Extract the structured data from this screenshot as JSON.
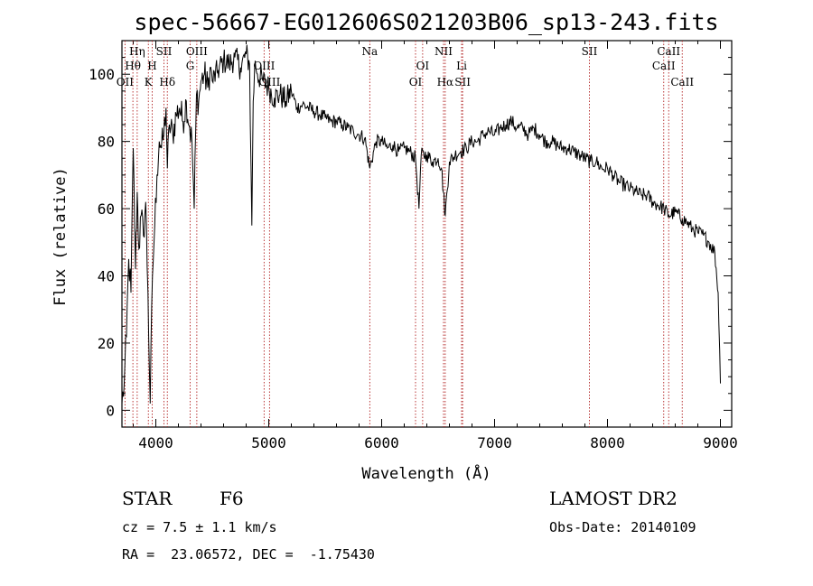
{
  "chart_data": {
    "type": "line",
    "title": "spec-56667-EG012606S021203B06_sp13-243.fits",
    "xlabel": "Wavelength (Å)",
    "ylabel": "Flux (relative)",
    "xlim": [
      3700,
      9100
    ],
    "ylim": [
      -5,
      110
    ],
    "xticks": [
      4000,
      5000,
      6000,
      7000,
      8000,
      9000
    ],
    "yticks": [
      0,
      20,
      40,
      60,
      80,
      100
    ],
    "grid": false,
    "series": [
      {
        "x": [
          3700,
          3720,
          3740,
          3760,
          3780,
          3800,
          3820,
          3835,
          3850,
          3870,
          3890,
          3910,
          3930,
          3950,
          3970,
          3990,
          4010,
          4030,
          4050,
          4070,
          4090,
          4102,
          4120,
          4150,
          4180,
          4210,
          4240,
          4270,
          4300,
          4320,
          4340,
          4360,
          4380,
          4400,
          4430,
          4460,
          4480,
          4500,
          4550,
          4600,
          4650,
          4700,
          4750,
          4800,
          4830,
          4850,
          4862,
          4880,
          4900,
          4950,
          5000,
          5050,
          5100,
          5150,
          5200,
          5250,
          5300,
          5350,
          5400,
          5450,
          5500,
          5550,
          5600,
          5650,
          5700,
          5750,
          5800,
          5850,
          5895,
          5950,
          6000,
          6050,
          6100,
          6150,
          6200,
          6250,
          6300,
          6330,
          6350,
          6400,
          6450,
          6500,
          6530,
          6563,
          6600,
          6650,
          6700,
          6750,
          6800,
          6850,
          6900,
          6950,
          7000,
          7050,
          7100,
          7150,
          7200,
          7250,
          7300,
          7350,
          7400,
          7450,
          7500,
          7550,
          7600,
          7650,
          7700,
          7750,
          7800,
          7850,
          7900,
          7950,
          8000,
          8050,
          8100,
          8150,
          8200,
          8250,
          8300,
          8350,
          8400,
          8450,
          8500,
          8542,
          8600,
          8662,
          8700,
          8750,
          8800,
          8850,
          8900,
          8950,
          8980,
          9000
        ],
        "values": [
          2,
          8,
          22,
          45,
          35,
          78,
          42,
          65,
          48,
          58,
          52,
          62,
          35,
          2,
          40,
          55,
          70,
          80,
          78,
          82,
          90,
          72,
          85,
          82,
          88,
          90,
          86,
          92,
          84,
          80,
          60,
          94,
          92,
          98,
          100,
          96,
          102,
          98,
          101,
          104,
          103,
          105,
          102,
          106,
          103,
          55,
          92,
          104,
          100,
          98,
          96,
          93,
          94,
          92,
          95,
          90,
          91,
          90,
          89,
          88,
          87,
          86,
          86,
          85,
          84,
          83,
          82,
          81,
          72,
          80,
          80,
          78,
          79,
          77,
          78,
          77,
          75,
          60,
          76,
          76,
          74,
          75,
          72,
          58,
          74,
          76,
          77,
          78,
          80,
          80,
          82,
          83,
          82,
          84,
          85,
          86,
          84,
          84,
          82,
          84,
          82,
          80,
          80,
          79,
          78,
          78,
          77,
          76,
          75,
          74,
          74,
          72,
          72,
          70,
          68,
          67,
          66,
          65,
          64,
          64,
          62,
          61,
          60,
          58,
          59,
          57,
          56,
          54,
          53,
          52,
          50,
          47,
          35,
          8
        ],
        "color": "#000000"
      }
    ],
    "lines": [
      {
        "label": "OII",
        "x": 3727,
        "tier": 3
      },
      {
        "label": "Hθ",
        "x": 3797,
        "tier": 2
      },
      {
        "label": "Hη",
        "x": 3835,
        "tier": 1
      },
      {
        "label": "K",
        "x": 3934,
        "tier": 3
      },
      {
        "label": "H",
        "x": 3968,
        "tier": 2
      },
      {
        "label": "SII",
        "x": 4072,
        "tier": 1
      },
      {
        "label": "Hδ",
        "x": 4102,
        "tier": 3
      },
      {
        "label": "G",
        "x": 4304,
        "tier": 2
      },
      {
        "label": "OIII",
        "x": 4363,
        "tier": 1
      },
      {
        "label": "OIII",
        "x": 4959,
        "tier": 2
      },
      {
        "label": "OIII",
        "x": 5007,
        "tier": 3
      },
      {
        "label": "Na",
        "x": 5895,
        "tier": 1
      },
      {
        "label": "OI",
        "x": 6300,
        "tier": 3
      },
      {
        "label": "OI",
        "x": 6363,
        "tier": 2
      },
      {
        "label": "NII",
        "x": 6548,
        "tier": 1
      },
      {
        "label": "Hα",
        "x": 6563,
        "tier": 3
      },
      {
        "label": "Li",
        "x": 6708,
        "tier": 2
      },
      {
        "label": "SII",
        "x": 6717,
        "tier": 3
      },
      {
        "label": "SII",
        "x": 7840,
        "tier": 1
      },
      {
        "label": "CaII",
        "x": 8498,
        "tier": 2
      },
      {
        "label": "CaII",
        "x": 8542,
        "tier": 1
      },
      {
        "label": "CaII",
        "x": 8662,
        "tier": 3
      }
    ]
  },
  "info": {
    "class": "STAR",
    "subclass": "F6",
    "survey": "LAMOST DR2",
    "cz": "cz = 7.5 ± 1.1 km/s",
    "obs_date": "Obs-Date: 20140109",
    "radec": "RA =  23.06572, DEC =  -1.75430"
  }
}
